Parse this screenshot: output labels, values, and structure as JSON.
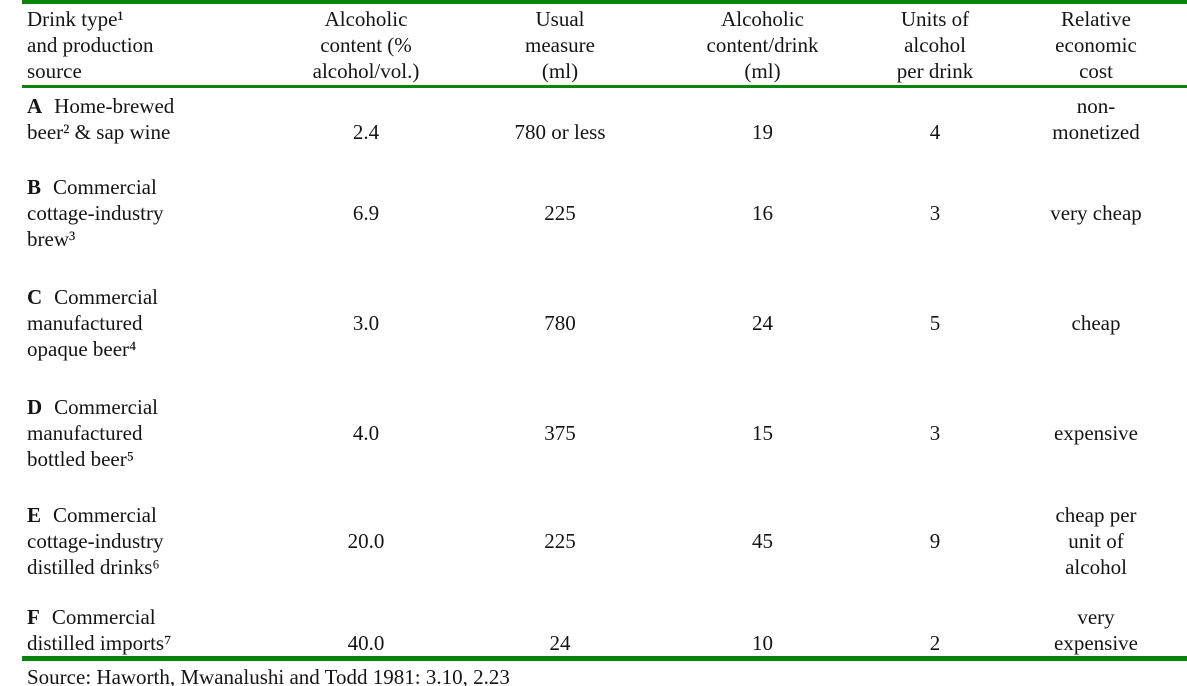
{
  "colors": {
    "rule_green": "#0a840a",
    "text": "#141414",
    "background": "#ffffff"
  },
  "table": {
    "headers": {
      "drink_type": "Drink type¹\nand production\nsource",
      "alcoholic_content": "Alcoholic\ncontent (%\nalcohol/vol.)",
      "usual_measure": "Usual\nmeasure\n(ml)",
      "content_per_drink": "Alcoholic\ncontent/drink\n(ml)",
      "units_per_drink": "Units of\nalcohol\nper drink",
      "economic_cost": "Relative\neconomic\ncost"
    },
    "rows": [
      {
        "letter": "A",
        "title_line1": "Home-brewed",
        "title_rest": "beer² & sap wine",
        "abv": "2.4",
        "measure": "780 or less",
        "content_per_drink": "19",
        "units": "4",
        "cost": "non-\nmonetized"
      },
      {
        "letter": "B",
        "title_line1": "Commercial",
        "title_rest": "cottage-industry\nbrew³",
        "abv": "6.9",
        "measure": "225",
        "content_per_drink": "16",
        "units": "3",
        "cost": "very cheap"
      },
      {
        "letter": "C",
        "title_line1": "Commercial",
        "title_rest": "manufactured\nopaque beer⁴",
        "abv": "3.0",
        "measure": "780",
        "content_per_drink": "24",
        "units": "5",
        "cost": "cheap"
      },
      {
        "letter": "D",
        "title_line1": "Commercial",
        "title_rest": "manufactured\nbottled beer⁵",
        "abv": "4.0",
        "measure": "375",
        "content_per_drink": "15",
        "units": "3",
        "cost": "expensive"
      },
      {
        "letter": "E",
        "title_line1": "Commercial",
        "title_rest": "cottage-industry\ndistilled drinks⁶",
        "abv": "20.0",
        "measure": "225",
        "content_per_drink": "45",
        "units": "9",
        "cost": "cheap per\nunit of\nalcohol"
      },
      {
        "letter": "F",
        "title_line1": "Commercial",
        "title_rest": "distilled imports⁷",
        "abv": "40.0",
        "measure": "24",
        "content_per_drink": "10",
        "units": "2",
        "cost": "very\nexpensive"
      }
    ],
    "source": "Source: Haworth, Mwanalushi and Todd 1981: 3.10, 2.23"
  }
}
